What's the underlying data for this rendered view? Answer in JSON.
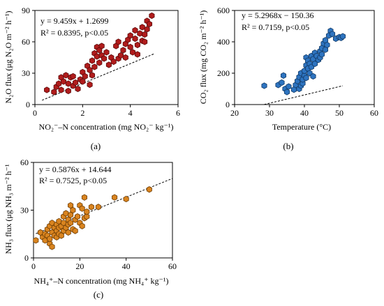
{
  "chart_data": [
    {
      "id": "a",
      "type": "scatter",
      "panel_label": "(a)",
      "ylabel": "N₂O flux (μg N₂O m⁻² h⁻¹)",
      "xlabel": "NO₂⁻–N concentration (mg NO₂⁻ kg⁻¹)",
      "xlim": [
        0,
        6
      ],
      "ylim": [
        0,
        90
      ],
      "xticks": [
        0,
        2,
        4,
        6
      ],
      "yticks": [
        0,
        30,
        60,
        90
      ],
      "equation": "y = 9.459x + 1.2699",
      "r2_text": "R² = 0.8395, p<0.05",
      "trendline": {
        "slope": 9.459,
        "intercept": 1.2699,
        "x_range": [
          0.3,
          5.0
        ]
      },
      "marker_color": "#b01c1c",
      "marker_edge": "#5a0a0a",
      "points": [
        [
          0.5,
          14
        ],
        [
          0.8,
          12
        ],
        [
          0.9,
          17
        ],
        [
          1.0,
          20
        ],
        [
          1.1,
          26
        ],
        [
          1.1,
          14
        ],
        [
          1.2,
          22
        ],
        [
          1.3,
          28
        ],
        [
          1.4,
          20
        ],
        [
          1.4,
          13
        ],
        [
          1.5,
          26
        ],
        [
          1.6,
          18
        ],
        [
          1.6,
          27
        ],
        [
          1.7,
          21
        ],
        [
          1.8,
          15
        ],
        [
          1.9,
          24
        ],
        [
          2.0,
          31
        ],
        [
          2.0,
          22
        ],
        [
          2.1,
          27
        ],
        [
          2.2,
          37
        ],
        [
          2.3,
          33
        ],
        [
          2.3,
          19
        ],
        [
          2.4,
          42
        ],
        [
          2.4,
          28
        ],
        [
          2.5,
          49
        ],
        [
          2.5,
          36
        ],
        [
          2.6,
          46
        ],
        [
          2.6,
          55
        ],
        [
          2.7,
          52
        ],
        [
          2.7,
          40
        ],
        [
          2.8,
          47
        ],
        [
          2.8,
          56
        ],
        [
          2.9,
          44
        ],
        [
          3.0,
          50
        ],
        [
          3.1,
          38
        ],
        [
          3.2,
          45
        ],
        [
          3.3,
          41
        ],
        [
          3.4,
          56
        ],
        [
          3.5,
          44
        ],
        [
          3.5,
          60
        ],
        [
          3.6,
          47
        ],
        [
          3.7,
          52
        ],
        [
          3.8,
          45
        ],
        [
          3.8,
          58
        ],
        [
          3.9,
          62
        ],
        [
          4.0,
          55
        ],
        [
          4.0,
          66
        ],
        [
          4.1,
          50
        ],
        [
          4.2,
          63
        ],
        [
          4.3,
          57
        ],
        [
          4.4,
          68
        ],
        [
          4.5,
          61
        ],
        [
          4.5,
          74
        ],
        [
          4.6,
          67
        ],
        [
          4.7,
          72
        ],
        [
          4.7,
          80
        ],
        [
          4.8,
          77
        ],
        [
          4.9,
          85
        ],
        [
          4.3,
          48
        ],
        [
          4.6,
          60
        ],
        [
          4.2,
          71
        ]
      ]
    },
    {
      "id": "b",
      "type": "scatter",
      "panel_label": "(b)",
      "ylabel": "CO₂ flux (mg CO₂ m⁻² h⁻¹)",
      "xlabel": "Temperature (°C)",
      "xlim": [
        20,
        60
      ],
      "ylim": [
        0,
        600
      ],
      "xticks": [
        20,
        30,
        40,
        50,
        60
      ],
      "yticks": [
        0,
        200,
        400,
        600
      ],
      "equation": "y = 5.2968x − 150.36",
      "r2_text": "R² = 0.7159, p<0.05",
      "trendline": {
        "slope": 5.2968,
        "intercept": -150.36,
        "x_range": [
          28.5,
          51
        ]
      },
      "marker_color": "#2e74c0",
      "marker_edge": "#123a66",
      "points": [
        [
          28.5,
          120
        ],
        [
          32.5,
          125
        ],
        [
          33.5,
          140
        ],
        [
          34.0,
          185
        ],
        [
          34.5,
          100
        ],
        [
          35.0,
          80
        ],
        [
          35.5,
          115
        ],
        [
          37.0,
          95
        ],
        [
          37.5,
          125
        ],
        [
          38.0,
          150
        ],
        [
          38.5,
          100
        ],
        [
          38.5,
          175
        ],
        [
          39.0,
          120
        ],
        [
          39.0,
          200
        ],
        [
          39.5,
          135
        ],
        [
          39.5,
          160
        ],
        [
          40.0,
          185
        ],
        [
          40.0,
          215
        ],
        [
          40.5,
          250
        ],
        [
          40.5,
          300
        ],
        [
          40.5,
          170
        ],
        [
          41.0,
          230
        ],
        [
          41.0,
          280
        ],
        [
          41.5,
          200
        ],
        [
          41.5,
          260
        ],
        [
          42.0,
          310
        ],
        [
          42.0,
          240
        ],
        [
          42.5,
          180
        ],
        [
          42.5,
          290
        ],
        [
          43.0,
          260
        ],
        [
          43.0,
          330
        ],
        [
          43.5,
          310
        ],
        [
          44.0,
          285
        ],
        [
          44.5,
          340
        ],
        [
          44.5,
          300
        ],
        [
          45.0,
          360
        ],
        [
          45.0,
          320
        ],
        [
          45.5,
          390
        ],
        [
          46.0,
          350
        ],
        [
          46.0,
          410
        ],
        [
          46.5,
          380
        ],
        [
          47.0,
          440
        ],
        [
          47.5,
          470
        ],
        [
          48.0,
          450
        ],
        [
          49.0,
          420
        ],
        [
          50.0,
          430
        ],
        [
          50.5,
          425
        ],
        [
          51.0,
          435
        ]
      ]
    },
    {
      "id": "c",
      "type": "scatter",
      "panel_label": "(c)",
      "ylabel": "NH₃ flux (μg NH₃ m⁻² h⁻¹",
      "xlabel": "NH₄⁺–N concentration (mg NH₄⁺ kg⁻¹)",
      "xlim": [
        0,
        60
      ],
      "ylim": [
        0,
        60
      ],
      "xticks": [
        0,
        20,
        40,
        60
      ],
      "yticks": [
        0,
        30,
        60
      ],
      "equation": "y = 0.5876x + 14.644",
      "r2_text": "R² = 0.7525, p<0.05",
      "trendline": {
        "slope": 0.5876,
        "intercept": 14.644,
        "x_range": [
          1,
          60
        ]
      },
      "marker_color": "#d9841f",
      "marker_edge": "#6e3d05",
      "points": [
        [
          1,
          11
        ],
        [
          3,
          16
        ],
        [
          4,
          13
        ],
        [
          5,
          15
        ],
        [
          5,
          11
        ],
        [
          6,
          18
        ],
        [
          6,
          14
        ],
        [
          7,
          20
        ],
        [
          7,
          9
        ],
        [
          7,
          12
        ],
        [
          8,
          16
        ],
        [
          8,
          7
        ],
        [
          8,
          22
        ],
        [
          9,
          14
        ],
        [
          9,
          19
        ],
        [
          10,
          13
        ],
        [
          10,
          17
        ],
        [
          10,
          21
        ],
        [
          11,
          15
        ],
        [
          11,
          23
        ],
        [
          11,
          19
        ],
        [
          12,
          20
        ],
        [
          12,
          14
        ],
        [
          13,
          26
        ],
        [
          13,
          17
        ],
        [
          13,
          22
        ],
        [
          14,
          19
        ],
        [
          14,
          28
        ],
        [
          15,
          21
        ],
        [
          15,
          16
        ],
        [
          15,
          24
        ],
        [
          16,
          33
        ],
        [
          16,
          22
        ],
        [
          16,
          27
        ],
        [
          17,
          18
        ],
        [
          17,
          30
        ],
        [
          18,
          24
        ],
        [
          19,
          26
        ],
        [
          20,
          22
        ],
        [
          20,
          33
        ],
        [
          21,
          31
        ],
        [
          21,
          20
        ],
        [
          22,
          25
        ],
        [
          22,
          38
        ],
        [
          23,
          26
        ],
        [
          23,
          29
        ],
        [
          25,
          32
        ],
        [
          28,
          32
        ],
        [
          35,
          38
        ],
        [
          40,
          37
        ],
        [
          50,
          43
        ],
        [
          18,
          17
        ]
      ]
    }
  ]
}
